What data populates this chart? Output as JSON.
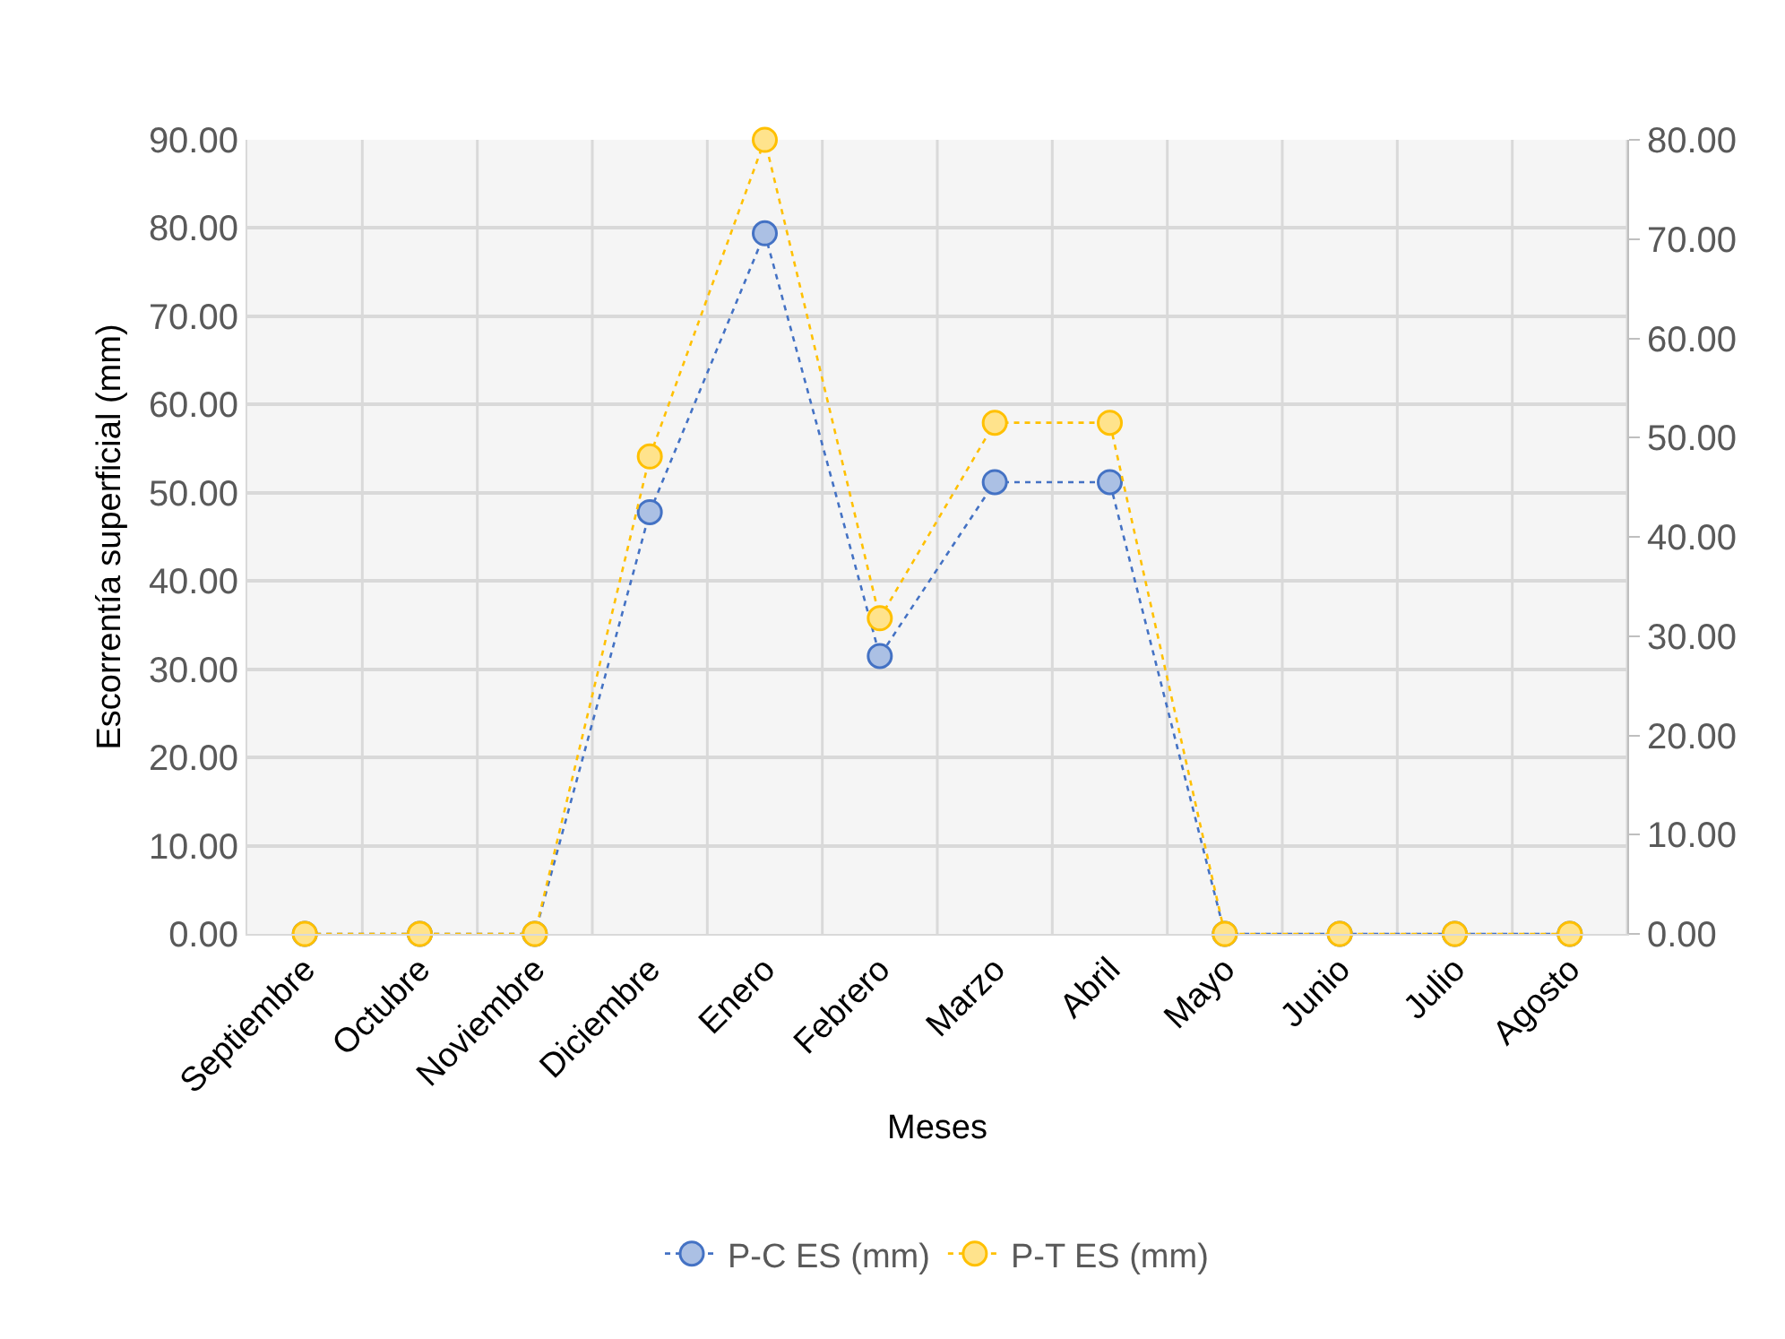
{
  "chart_data": {
    "type": "line",
    "xlabel": "Meses",
    "ylabel": "Escorrentía superficial (mm)",
    "categories": [
      "Septiembre",
      "Octubre",
      "Noviembre",
      "Diciembre",
      "Enero",
      "Febrero",
      "Marzo",
      "Abril",
      "Mayo",
      "Junio",
      "Julio",
      "Agosto"
    ],
    "series": [
      {
        "name": "P-C ES (mm)",
        "color": "#4472c4",
        "values": [
          0,
          0,
          0,
          47.8,
          79.4,
          31.5,
          51.2,
          51.2,
          0,
          0,
          0,
          0
        ]
      },
      {
        "name": "P-T ES (mm)",
        "color": "#ffc000",
        "axis": "y2",
        "values": [
          0,
          0,
          0,
          48.1,
          80,
          31.8,
          51.5,
          51.5,
          0,
          0,
          0,
          0
        ]
      }
    ],
    "ylim": [
      0,
      90
    ],
    "yticks": [
      {
        "value": 0,
        "label": "0.00"
      },
      {
        "value": 10,
        "label": "10.00"
      },
      {
        "value": 20,
        "label": "20.00"
      },
      {
        "value": 30,
        "label": "30.00"
      },
      {
        "value": 40,
        "label": "40.00"
      },
      {
        "value": 50,
        "label": "50.00"
      },
      {
        "value": 60,
        "label": "60.00"
      },
      {
        "value": 70,
        "label": "70.00"
      },
      {
        "value": 80,
        "label": "80.00"
      },
      {
        "value": 90,
        "label": "90.00"
      }
    ],
    "y2lim": [
      0,
      80
    ],
    "y2ticks": [
      {
        "value": 0,
        "label": "0.00"
      },
      {
        "value": 10,
        "label": "10.00"
      },
      {
        "value": 20,
        "label": "20.00"
      },
      {
        "value": 30,
        "label": "30.00"
      },
      {
        "value": 40,
        "label": "40.00"
      },
      {
        "value": 50,
        "label": "50.00"
      },
      {
        "value": 60,
        "label": "60.00"
      },
      {
        "value": 70,
        "label": "70.00"
      },
      {
        "value": 80,
        "label": "80.00"
      }
    ],
    "grid": true,
    "legend": "bottom",
    "marker": "circle",
    "line_style": "dotted"
  }
}
